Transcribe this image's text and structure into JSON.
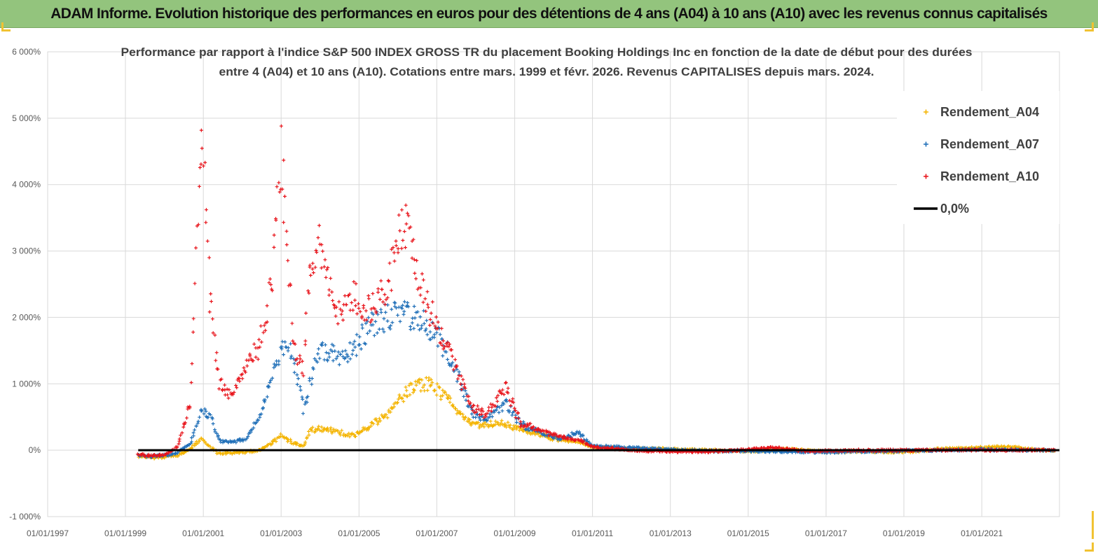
{
  "banner": {
    "title": "ADAM Informe. Evolution historique des performances en euros pour des détentions de 4 ans (A04) à 10 ans (A10) avec les revenus connus capitalisés"
  },
  "colors": {
    "banner_bg": "#93c47d",
    "A04": "#f4b400",
    "A07": "#1f6fb8",
    "A10": "#e8131a",
    "zero_line": "#000000"
  },
  "chart_data": {
    "type": "scatter",
    "title_lines": [
      "Performance par rapport à l'indice S&P 500 INDEX GROSS TR  du placement Booking Holdings Inc en fonction de la date de début pour des durées",
      "entre 4 (A04) et 10 ans (A10). Cotations entre mars. 1999 et févr. 2026. Revenus CAPITALISES depuis mars. 2024."
    ],
    "xlim": [
      "1997-01-01",
      "2022-12-31"
    ],
    "ylim": [
      -1000,
      6000
    ],
    "y_unit": "%",
    "x_ticks": [
      "01/01/1997",
      "01/01/1999",
      "01/01/2001",
      "01/01/2003",
      "01/01/2005",
      "01/01/2007",
      "01/01/2009",
      "01/01/2011",
      "01/01/2013",
      "01/01/2015",
      "01/01/2017",
      "01/01/2019",
      "01/01/2021"
    ],
    "y_ticks": [
      {
        "value": 6000,
        "label": "6 000%"
      },
      {
        "value": 5000,
        "label": "5 000%"
      },
      {
        "value": 4000,
        "label": "4 000%"
      },
      {
        "value": 3000,
        "label": "3 000%"
      },
      {
        "value": 2000,
        "label": "2 000%"
      },
      {
        "value": 1000,
        "label": "1 000%"
      },
      {
        "value": 0,
        "label": "0%"
      },
      {
        "value": -1000,
        "label": "-1 000%"
      }
    ],
    "grid": true,
    "legend_position": "top-right",
    "series": [
      {
        "name": "Rendement_A04",
        "marker": "plus",
        "points": [
          [
            "1999-05-01",
            -100
          ],
          [
            "1999-09-01",
            -110
          ],
          [
            "2000-01-01",
            -100
          ],
          [
            "2000-05-01",
            -80
          ],
          [
            "2000-09-01",
            20
          ],
          [
            "2000-12-15",
            180
          ],
          [
            "2001-03-01",
            50
          ],
          [
            "2001-06-01",
            -50
          ],
          [
            "2001-10-01",
            -40
          ],
          [
            "2002-02-01",
            -30
          ],
          [
            "2002-06-01",
            0
          ],
          [
            "2002-10-01",
            100
          ],
          [
            "2003-01-01",
            220
          ],
          [
            "2003-05-01",
            100
          ],
          [
            "2003-08-01",
            60
          ],
          [
            "2003-10-01",
            300
          ],
          [
            "2004-01-01",
            330
          ],
          [
            "2004-06-01",
            280
          ],
          [
            "2004-11-01",
            220
          ],
          [
            "2005-05-01",
            380
          ],
          [
            "2005-10-01",
            560
          ],
          [
            "2006-03-01",
            850
          ],
          [
            "2006-07-01",
            980
          ],
          [
            "2006-10-01",
            1000
          ],
          [
            "2007-03-01",
            850
          ],
          [
            "2007-08-01",
            550
          ],
          [
            "2007-12-01",
            400
          ],
          [
            "2008-04-01",
            380
          ],
          [
            "2008-10-01",
            400
          ],
          [
            "2009-03-01",
            300
          ],
          [
            "2009-09-01",
            230
          ],
          [
            "2010-03-01",
            150
          ],
          [
            "2010-09-01",
            120
          ],
          [
            "2011-01-01",
            50
          ],
          [
            "2012-01-01",
            20
          ],
          [
            "2013-01-01",
            20
          ],
          [
            "2014-01-01",
            0
          ],
          [
            "2015-01-01",
            -20
          ],
          [
            "2016-01-01",
            20
          ],
          [
            "2017-01-01",
            -20
          ],
          [
            "2018-01-01",
            -20
          ],
          [
            "2019-01-01",
            -30
          ],
          [
            "2020-01-01",
            20
          ],
          [
            "2021-01-01",
            40
          ],
          [
            "2021-09-01",
            60
          ],
          [
            "2022-06-01",
            0
          ],
          [
            "2022-12-01",
            0
          ]
        ]
      },
      {
        "name": "Rendement_A07",
        "marker": "plus",
        "points": [
          [
            "1999-05-01",
            -80
          ],
          [
            "1999-09-01",
            -90
          ],
          [
            "2000-01-01",
            -80
          ],
          [
            "2000-05-01",
            -40
          ],
          [
            "2000-09-01",
            100
          ],
          [
            "2000-12-15",
            600
          ],
          [
            "2001-03-01",
            550
          ],
          [
            "2001-06-01",
            150
          ],
          [
            "2001-10-01",
            120
          ],
          [
            "2002-02-01",
            170
          ],
          [
            "2002-06-01",
            450
          ],
          [
            "2002-10-01",
            1100
          ],
          [
            "2003-01-01",
            1600
          ],
          [
            "2003-05-01",
            1400
          ],
          [
            "2003-08-01",
            600
          ],
          [
            "2003-10-01",
            1000
          ],
          [
            "2004-01-01",
            1550
          ],
          [
            "2004-06-01",
            1400
          ],
          [
            "2004-11-01",
            1500
          ],
          [
            "2005-05-01",
            1900
          ],
          [
            "2005-10-01",
            2000
          ],
          [
            "2006-03-01",
            2050
          ],
          [
            "2006-07-01",
            2000
          ],
          [
            "2006-10-01",
            1900
          ],
          [
            "2007-03-01",
            1600
          ],
          [
            "2007-08-01",
            1050
          ],
          [
            "2007-12-01",
            550
          ],
          [
            "2008-04-01",
            450
          ],
          [
            "2008-10-01",
            700
          ],
          [
            "2009-03-01",
            400
          ],
          [
            "2009-09-01",
            250
          ],
          [
            "2010-03-01",
            180
          ],
          [
            "2010-09-01",
            260
          ],
          [
            "2011-01-01",
            60
          ],
          [
            "2012-01-01",
            40
          ],
          [
            "2013-01-01",
            10
          ],
          [
            "2014-01-01",
            -10
          ],
          [
            "2015-01-01",
            -10
          ],
          [
            "2016-01-01",
            -20
          ],
          [
            "2017-01-01",
            -30
          ],
          [
            "2018-01-01",
            -20
          ],
          [
            "2019-01-01",
            -10
          ],
          [
            "2020-01-01",
            0
          ],
          [
            "2021-01-01",
            10
          ],
          [
            "2022-06-01",
            0
          ],
          [
            "2022-12-01",
            0
          ]
        ]
      },
      {
        "name": "Rendement_A10",
        "marker": "plus",
        "points": [
          [
            "1999-05-01",
            -70
          ],
          [
            "1999-09-01",
            -80
          ],
          [
            "2000-01-01",
            -70
          ],
          [
            "2000-05-01",
            50
          ],
          [
            "2000-09-01",
            700
          ],
          [
            "2000-12-15",
            5200
          ],
          [
            "2001-03-01",
            2300
          ],
          [
            "2001-06-01",
            1000
          ],
          [
            "2001-10-01",
            800
          ],
          [
            "2002-02-01",
            1300
          ],
          [
            "2002-06-01",
            1500
          ],
          [
            "2002-10-01",
            2500
          ],
          [
            "2003-01-01",
            4500
          ],
          [
            "2003-05-01",
            1600
          ],
          [
            "2003-08-01",
            1200
          ],
          [
            "2003-10-01",
            2900
          ],
          [
            "2004-01-01",
            3100
          ],
          [
            "2004-06-01",
            2000
          ],
          [
            "2004-11-01",
            2300
          ],
          [
            "2005-05-01",
            2100
          ],
          [
            "2005-10-01",
            2500
          ],
          [
            "2006-03-01",
            3500
          ],
          [
            "2006-07-01",
            2600
          ],
          [
            "2006-10-01",
            2200
          ],
          [
            "2007-03-01",
            1700
          ],
          [
            "2007-08-01",
            1100
          ],
          [
            "2007-12-01",
            650
          ],
          [
            "2008-04-01",
            550
          ],
          [
            "2008-10-01",
            950
          ],
          [
            "2009-03-01",
            400
          ],
          [
            "2009-09-01",
            300
          ],
          [
            "2010-03-01",
            200
          ],
          [
            "2010-09-01",
            150
          ],
          [
            "2011-01-01",
            50
          ],
          [
            "2012-01-01",
            0
          ],
          [
            "2013-01-01",
            -20
          ],
          [
            "2014-01-01",
            -20
          ],
          [
            "2015-01-01",
            10
          ],
          [
            "2015-09-01",
            40
          ],
          [
            "2016-06-01",
            -10
          ],
          [
            "2017-01-01",
            -10
          ],
          [
            "2018-01-01",
            0
          ],
          [
            "2019-01-01",
            0
          ],
          [
            "2020-01-01",
            0
          ],
          [
            "2021-01-01",
            0
          ],
          [
            "2022-06-01",
            0
          ],
          [
            "2022-12-01",
            0
          ]
        ]
      },
      {
        "name": "0,0%",
        "type": "line",
        "points": [
          [
            "1999-05-01",
            0
          ],
          [
            "2022-12-31",
            0
          ]
        ]
      }
    ]
  }
}
